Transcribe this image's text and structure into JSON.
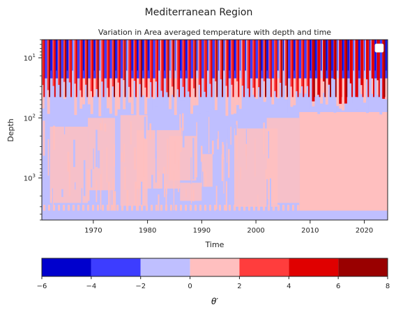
{
  "chart_data": {
    "type": "heatmap",
    "suptitle": "Mediterranean Region",
    "title": "Variation in Area averaged temperature with depth and time",
    "xlabel": "Time",
    "ylabel": "Depth",
    "x_range": [
      1960.5,
      2024.3
    ],
    "x_ticks": [
      {
        "value": 1970,
        "label": "1970"
      },
      {
        "value": 1980,
        "label": "1980"
      },
      {
        "value": 1990,
        "label": "1990"
      },
      {
        "value": 2000,
        "label": "2000"
      },
      {
        "value": 2010,
        "label": "2010"
      },
      {
        "value": 2020,
        "label": "2020"
      }
    ],
    "y_scale": "log",
    "y_inverted": true,
    "y_range": [
      5,
      5000
    ],
    "y_ticks": [
      {
        "value": 10,
        "base": "10",
        "exp": "1"
      },
      {
        "value": 100,
        "base": "10",
        "exp": "2"
      },
      {
        "value": 1000,
        "base": "10",
        "exp": "3"
      }
    ],
    "colorbar": {
      "label": "θ′",
      "levels": [
        -6,
        -4,
        -2,
        0,
        2,
        4,
        6,
        8
      ],
      "level_labels": [
        "−6",
        "−4",
        "−2",
        "0",
        "2",
        "4",
        "6",
        "8"
      ],
      "colors": [
        "#0000cd",
        "#3d3dff",
        "#bfbfff",
        "#ffbfbf",
        "#ff3d3d",
        "#e00000",
        "#990000"
      ]
    },
    "regions": [
      {
        "x": [
          1960.5,
          2024.3
        ],
        "depth": [
          5,
          22
        ],
        "value": "banded ±8 (seasonal surface layer)"
      },
      {
        "x": [
          1960.5,
          2024.3
        ],
        "depth": [
          22,
          80
        ],
        "value": "−2 to 0 mixed with 0 to 2"
      },
      {
        "x": [
          2008,
          2024.3
        ],
        "depth": [
          80,
          3500
        ],
        "value": "0 to 2"
      },
      {
        "x": [
          1960.5,
          2024.3
        ],
        "depth": [
          3500,
          4000
        ],
        "value": "−2 to 0"
      }
    ],
    "legend_placement": "top-right",
    "grid": false
  }
}
